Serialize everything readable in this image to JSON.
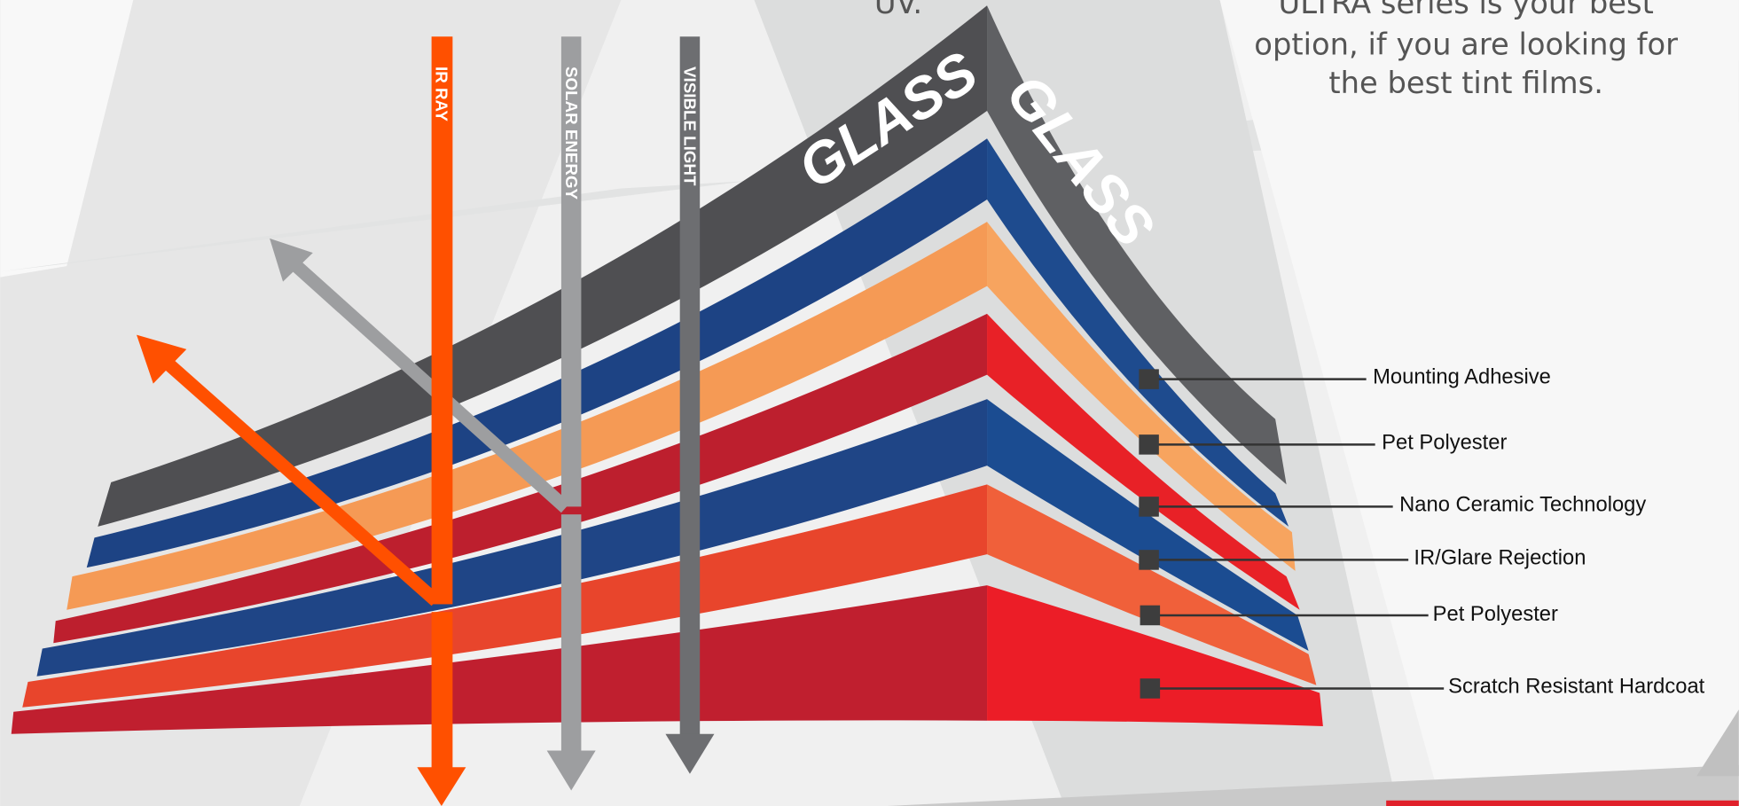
{
  "intro": {
    "left_fragment": "UV.",
    "right_lines": [
      "ULTRA series is your best",
      "option, if you are looking for",
      "the best tint films."
    ]
  },
  "glass_labels": [
    "GLASS",
    "GLASS"
  ],
  "rays": [
    "IR RAY",
    "SOLAR ENERGY",
    "VISIBLE LIGHT"
  ],
  "layers": [
    "Mounting Adhesive",
    "Pet Polyester",
    "Nano Ceramic Technology",
    "IR/Glare Rejection",
    "Pet Polyester",
    "Scratch Resistant Hardcoat"
  ]
}
